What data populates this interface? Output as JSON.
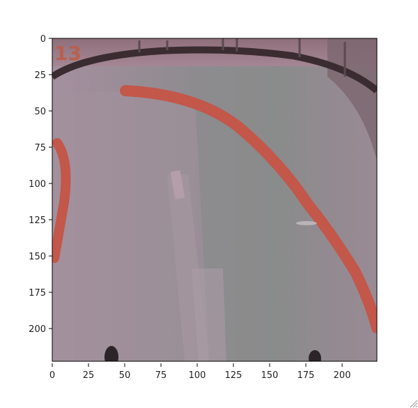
{
  "figure": {
    "frame_number": "13",
    "x_ticks": [
      "0",
      "25",
      "50",
      "75",
      "100",
      "125",
      "150",
      "175",
      "200"
    ],
    "y_ticks": [
      "0",
      "25",
      "50",
      "75",
      "100",
      "125",
      "150",
      "175",
      "200"
    ],
    "colors": {
      "ice": "#9c8a97",
      "ice_center": "#8b8c8c",
      "rink_line": "#c2574a",
      "board": "#3a2c30",
      "frame_number": "#b8604e"
    }
  }
}
